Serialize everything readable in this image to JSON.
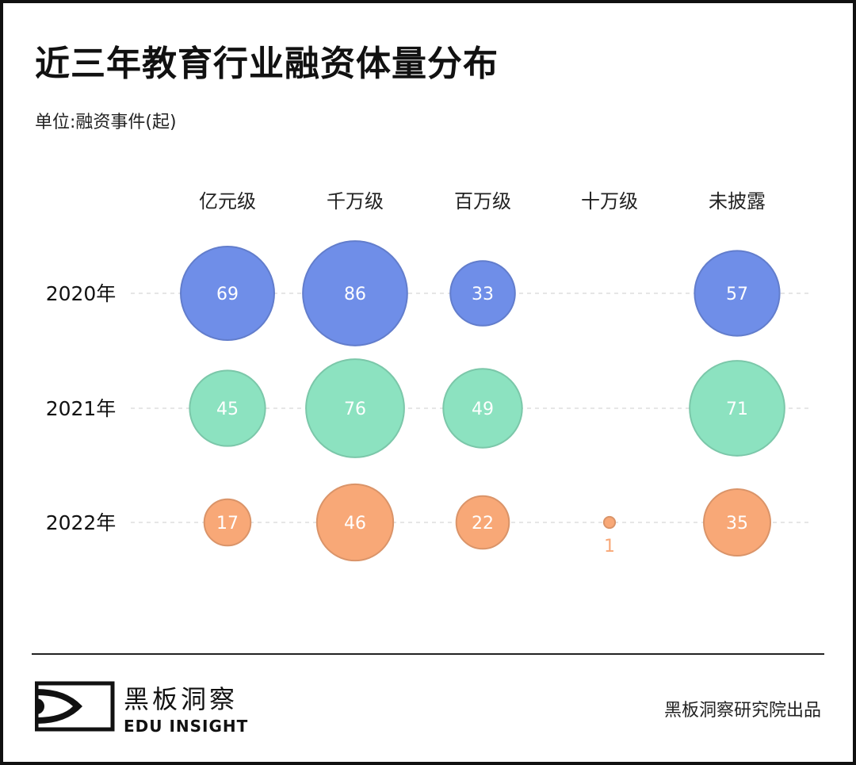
{
  "title": "近三年教育行业融资体量分布",
  "subtitle": "单位:融资事件(起)",
  "chart_data": {
    "type": "bubble",
    "categories": [
      "亿元级",
      "千万级",
      "百万级",
      "十万级",
      "未披露"
    ],
    "rows": [
      "2020年",
      "2021年",
      "2022年"
    ],
    "series": [
      {
        "name": "2020年",
        "color": "#6f8ee8",
        "values": [
          69,
          86,
          33,
          null,
          57
        ]
      },
      {
        "name": "2021年",
        "color": "#8ce2c0",
        "values": [
          45,
          76,
          49,
          null,
          71
        ]
      },
      {
        "name": "2022年",
        "color": "#f8a877",
        "values": [
          17,
          46,
          22,
          1,
          35
        ]
      }
    ],
    "grid": "dashed horizontal row lines",
    "legend": "none"
  },
  "logo": {
    "cn": "黑板洞察",
    "en": "EDU INSIGHT"
  },
  "credit": "黑板洞察研究院出品"
}
